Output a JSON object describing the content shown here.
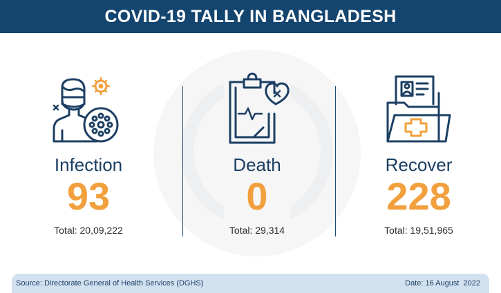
{
  "header": {
    "title": "COVID-19 TALLY IN BANGLADESH"
  },
  "stats": [
    {
      "label": "Infection",
      "value": "93",
      "total": "Total: 20,09,222",
      "icon": "infected-person-icon"
    },
    {
      "label": "Death",
      "value": "0",
      "total": "Total: 29,314",
      "icon": "clipboard-heart-icon"
    },
    {
      "label": "Recover",
      "value": "228",
      "total": "Total: 19,51,965",
      "icon": "medical-folder-icon"
    }
  ],
  "footer": {
    "source": "Source: Directorate General of Health Services (DGHS)",
    "date": "Date: 16 August  2022"
  },
  "colors": {
    "header_bg": "#14456f",
    "label": "#1c3f63",
    "value": "#f2a03d",
    "footer_bg": "#d2e1ef"
  }
}
